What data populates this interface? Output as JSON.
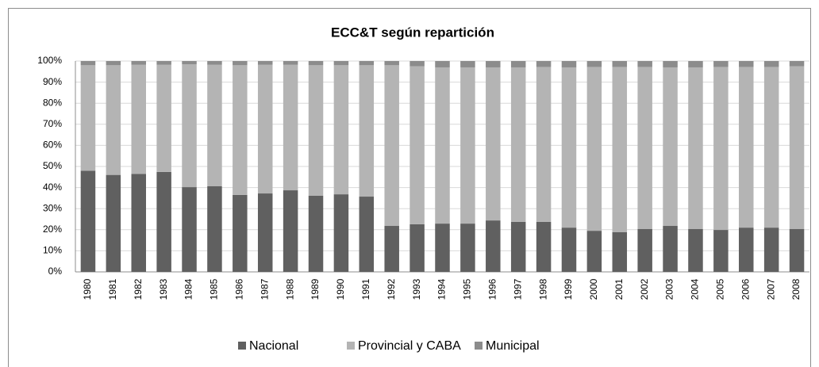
{
  "chart_data": {
    "type": "stacked_bar_100",
    "title": "ECC&T según repartición",
    "categories": [
      "1980",
      "1981",
      "1982",
      "1983",
      "1984",
      "1985",
      "1986",
      "1987",
      "1988",
      "1989",
      "1990",
      "1991",
      "1992",
      "1993",
      "1994",
      "1995",
      "1996",
      "1997",
      "1998",
      "1999",
      "2000",
      "2001",
      "2002",
      "2003",
      "2004",
      "2005",
      "2006",
      "2007",
      "2008"
    ],
    "series": [
      {
        "name": "Nacional",
        "color": "#606060",
        "values": [
          48,
          46,
          46.5,
          47.4,
          40.2,
          40.6,
          36.5,
          37.2,
          38.7,
          36.1,
          36.8,
          35.7,
          21.8,
          22.6,
          22.9,
          22.9,
          24.4,
          23.7,
          23.7,
          21,
          19.5,
          18.8,
          20.3,
          21.8,
          20.3,
          19.9,
          21,
          21,
          20.3
        ]
      },
      {
        "name": "Provincial y CABA",
        "color": "#b4b4b4",
        "values": [
          50,
          52,
          51.7,
          50.8,
          58.3,
          57.6,
          61.5,
          61,
          59.5,
          61.9,
          61.2,
          62.3,
          76.2,
          74.9,
          74.1,
          74.1,
          72.6,
          73.3,
          73.5,
          76,
          77.7,
          78.4,
          76.9,
          75.2,
          76.7,
          77.3,
          76.2,
          76.2,
          77.2
        ]
      },
      {
        "name": "Municipal",
        "color": "#8c8c8c",
        "values": [
          2,
          2,
          1.8,
          1.8,
          1.5,
          1.8,
          2,
          1.8,
          1.8,
          2,
          2,
          2,
          2,
          2.5,
          3,
          3,
          3,
          3,
          2.8,
          3,
          2.8,
          2.8,
          2.8,
          3,
          3,
          2.8,
          2.8,
          2.8,
          2.5
        ]
      }
    ],
    "ylim": [
      0,
      100
    ],
    "yticks": [
      {
        "value": 0,
        "label": "0%"
      },
      {
        "value": 10,
        "label": "10%"
      },
      {
        "value": 20,
        "label": "20%"
      },
      {
        "value": 30,
        "label": "30%"
      },
      {
        "value": 40,
        "label": "40%"
      },
      {
        "value": 50,
        "label": "50%"
      },
      {
        "value": 60,
        "label": "60%"
      },
      {
        "value": 70,
        "label": "70%"
      },
      {
        "value": 80,
        "label": "80%"
      },
      {
        "value": 90,
        "label": "90%"
      },
      {
        "value": 100,
        "label": "100%"
      }
    ],
    "grid": true,
    "legend": "bottom"
  }
}
